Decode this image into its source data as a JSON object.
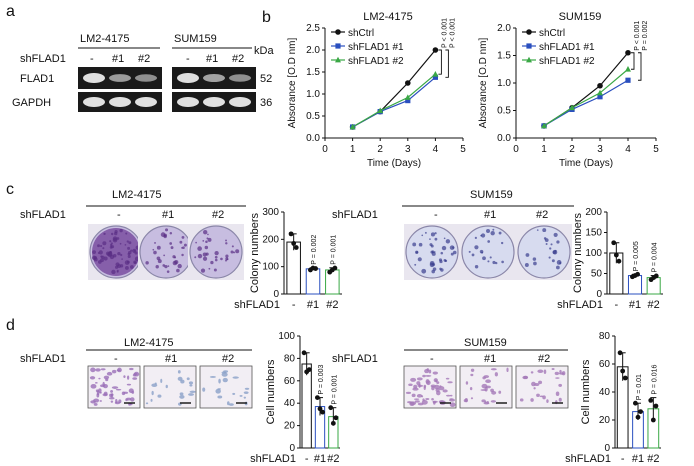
{
  "figure": {
    "panels": {
      "a": {
        "letter": "a",
        "cell_lines": [
          "LM2-4175",
          "SUM159"
        ],
        "sh_label": "shFLAD1",
        "lanes": [
          "-",
          "#1",
          "#2"
        ],
        "rows": [
          "FLAD1",
          "GAPDH"
        ],
        "kda_label": "kDa",
        "kda": [
          "52",
          "36"
        ],
        "flad1_levels": [
          [
            1.0,
            0.45,
            0.35
          ],
          [
            1.0,
            0.5,
            0.35
          ]
        ],
        "gapdh_levels": [
          [
            1.0,
            1.0,
            1.0
          ],
          [
            1.0,
            1.0,
            1.0
          ]
        ]
      },
      "b": {
        "letter": "b"
      },
      "c": {
        "letter": "c",
        "sh_label": "shFLAD1",
        "cell_lines": [
          "LM2-4175",
          "SUM159"
        ],
        "lanes": [
          "-",
          "#1",
          "#2"
        ]
      },
      "d": {
        "letter": "d",
        "sh_label": "shFLAD1",
        "cell_lines": [
          "LM2-4175",
          "SUM159"
        ],
        "lanes": [
          "-",
          "#1",
          "#2"
        ]
      }
    }
  },
  "chart_data": [
    {
      "type": "line",
      "title": "LM2-4175",
      "xlabel": "Time (Days)",
      "ylabel": "Absorance [O.D nm]",
      "xlim": [
        0,
        5
      ],
      "ylim": [
        0,
        2.5
      ],
      "xticks": [
        "0",
        "1",
        "2",
        "3",
        "4",
        "5"
      ],
      "yticks": [
        "0.0",
        "0.5",
        "1.0",
        "1.5",
        "2.0",
        "2.5"
      ],
      "x": [
        1,
        2,
        3,
        4
      ],
      "series": [
        {
          "name": "shCtrl",
          "values": [
            0.25,
            0.6,
            1.25,
            2.0
          ],
          "color": "#111111",
          "marker": "circle"
        },
        {
          "name": "shFLAD1 #1",
          "values": [
            0.25,
            0.6,
            0.85,
            1.38
          ],
          "color": "#2a4fbf",
          "marker": "square"
        },
        {
          "name": "shFLAD1 #2",
          "values": [
            0.25,
            0.62,
            0.92,
            1.45
          ],
          "color": "#3aa845",
          "marker": "triangle"
        }
      ],
      "annotations": [
        "P < 0.001",
        "P < 0.001"
      ],
      "legend": "top-left"
    },
    {
      "type": "line",
      "title": "SUM159",
      "xlabel": "Time (Days)",
      "ylabel": "Absorance [O.D nm]",
      "xlim": [
        0,
        5
      ],
      "ylim": [
        0,
        2.0
      ],
      "xticks": [
        "0",
        "1",
        "2",
        "3",
        "4",
        "5"
      ],
      "yticks": [
        "0.0",
        "0.5",
        "1.0",
        "1.5",
        "2.0"
      ],
      "x": [
        1,
        2,
        3,
        4
      ],
      "series": [
        {
          "name": "shCtrl",
          "values": [
            0.22,
            0.55,
            0.95,
            1.55
          ],
          "color": "#111111",
          "marker": "circle"
        },
        {
          "name": "shFLAD1 #1",
          "values": [
            0.22,
            0.52,
            0.75,
            1.05
          ],
          "color": "#2a4fbf",
          "marker": "square"
        },
        {
          "name": "shFLAD1 #2",
          "values": [
            0.22,
            0.55,
            0.82,
            1.25
          ],
          "color": "#3aa845",
          "marker": "triangle"
        }
      ],
      "annotations": [
        "P < 0.001",
        "P = 0.002"
      ],
      "legend": "top-left"
    },
    {
      "type": "bar",
      "ylabel": "Colony numbers",
      "xlabel": "shFLAD1",
      "categories": [
        "-",
        "#1",
        "#2"
      ],
      "values": [
        190,
        92,
        88
      ],
      "points": [
        [
          220,
          185,
          170
        ],
        [
          88,
          95,
          93
        ],
        [
          80,
          88,
          95
        ]
      ],
      "ylim": [
        0,
        300
      ],
      "yticks": [
        "0",
        "100",
        "200",
        "300"
      ],
      "annotations": [
        "P = 0.002",
        "P = 0.001"
      ]
    },
    {
      "type": "bar",
      "ylabel": "Colony numbers",
      "xlabel": "shFLAD1",
      "categories": [
        "-",
        "#1",
        "#2"
      ],
      "values": [
        100,
        45,
        40
      ],
      "points": [
        [
          125,
          95,
          80
        ],
        [
          42,
          45,
          48
        ],
        [
          35,
          40,
          44
        ]
      ],
      "ylim": [
        0,
        200
      ],
      "yticks": [
        "0",
        "50",
        "100",
        "150",
        "200"
      ],
      "annotations": [
        "P = 0.005",
        "P = 0.004"
      ]
    },
    {
      "type": "bar",
      "ylabel": "Cell numbers",
      "xlabel": "shFLAD1",
      "categories": [
        "-",
        "#1",
        "#2"
      ],
      "values": [
        75,
        37,
        28
      ],
      "points": [
        [
          85,
          68,
          70
        ],
        [
          45,
          35,
          32
        ],
        [
          36,
          22,
          27
        ]
      ],
      "ylim": [
        0,
        100
      ],
      "yticks": [
        "0",
        "20",
        "40",
        "60",
        "80",
        "100"
      ],
      "annotations": [
        "P = 0.003",
        "P = 0.001"
      ]
    },
    {
      "type": "bar",
      "ylabel": "Cell numbers",
      "xlabel": "shFLAD1",
      "categories": [
        "-",
        "#1",
        "#2"
      ],
      "values": [
        58,
        26,
        28
      ],
      "points": [
        [
          68,
          55,
          50
        ],
        [
          32,
          22,
          26
        ],
        [
          34,
          20,
          30
        ]
      ],
      "ylim": [
        0,
        80
      ],
      "yticks": [
        "0",
        "20",
        "40",
        "60",
        "80"
      ],
      "annotations": [
        "P = 0.01",
        "P = 0.016"
      ]
    }
  ]
}
